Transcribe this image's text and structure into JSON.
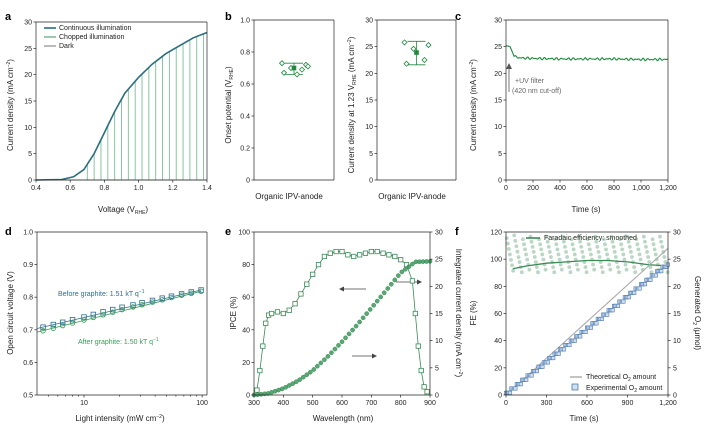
{
  "panels": {
    "a": {
      "label": "a",
      "xlabel": "Voltage (V",
      "xlabel_sub": "RHE",
      "xlabel_end": ")",
      "ylabel": "Current density (mA cm",
      "ylabel_sup": "−2",
      "ylabel_end": ")",
      "legend": [
        "Continuous illumination",
        "Chopped illumination",
        "Dark"
      ],
      "colors": {
        "continuous": "#2b6f7e",
        "chopped": "#7bbf97",
        "dark": "#aaaaaa"
      }
    },
    "b": {
      "label": "b",
      "left_ylabel": "Onset potential (V",
      "left_ylabel_sub": "RHE",
      "left_ylabel_end": ")",
      "right_ylabel": "Current density at 1.23 V",
      "right_ylabel_sub": "RHE",
      "right_ylabel_mid": " (mA cm",
      "right_ylabel_sup": "−2",
      "right_ylabel_end": ")",
      "left_category": "Organic IPV-anode",
      "right_category": "Organic IPV-anode",
      "color": "#1f8a3c"
    },
    "c": {
      "label": "c",
      "xlabel": "Time (s)",
      "ylabel": "Current density (mA cm",
      "ylabel_sup": "−2",
      "ylabel_end": ")",
      "annotation_line1": "+UV filter",
      "annotation_line2": "(420 nm cut-off)",
      "color": "#1f8a3c"
    },
    "d": {
      "label": "d",
      "xlabel": "Light intensity (mW cm",
      "xlabel_sup": "−2",
      "xlabel_end": ")",
      "ylabel": "Open circuit voltage (V)",
      "before_label": "Before graphite: 1.51 kT q",
      "before_sup": "−1",
      "after_label": "After graphite: 1.50 kT q",
      "after_sup": "−1",
      "colors": {
        "before": "#2f6f8f",
        "after": "#3a9a5a"
      }
    },
    "e": {
      "label": "e",
      "xlabel": "Wavelength (nm)",
      "ylabel": "IPCE (%)",
      "right_ylabel": "Integrated current density (mA cm",
      "right_ylabel_sup": "−2",
      "right_ylabel_end": ")",
      "colors": {
        "ipce": "#3a8a55",
        "integrated": "#3a9a5a"
      }
    },
    "f": {
      "label": "f",
      "xlabel": "Time (s)",
      "ylabel": "FE (%)",
      "right_ylabel": "Generated O",
      "right_ylabel_sub": "2",
      "right_ylabel_end": " (μmol)",
      "legend_fe": "Faradaic efficiency: smoothed",
      "legend_theo": "Theoretical O",
      "legend_theo_sub": "2",
      "legend_theo_end": " amount",
      "legend_exp": "Experimental O",
      "legend_exp_sub": "2",
      "legend_exp_end": " amount",
      "colors": {
        "fe": "#3a8a55",
        "theo": "#aaaaaa",
        "exp": "#4f7bb0"
      }
    }
  },
  "chart_data": [
    {
      "panel": "a",
      "type": "line",
      "xlim": [
        0.4,
        1.4
      ],
      "ylim": [
        0,
        30
      ],
      "xticks": [
        0.4,
        0.6,
        0.8,
        1.0,
        1.2,
        1.4
      ],
      "xtick_labels": [
        "0.4",
        "0.6",
        "0.8",
        "1.0",
        "1.2",
        "1.4"
      ],
      "yticks": [
        0,
        5,
        10,
        15,
        20,
        25,
        30
      ],
      "series": [
        {
          "name": "Continuous illumination",
          "x": [
            0.4,
            0.55,
            0.62,
            0.68,
            0.74,
            0.8,
            0.86,
            0.92,
            1.0,
            1.08,
            1.16,
            1.24,
            1.32,
            1.4
          ],
          "y": [
            0,
            0.1,
            0.6,
            2,
            5,
            9,
            13,
            16.5,
            19.5,
            22,
            24,
            25.5,
            27,
            28
          ]
        },
        {
          "name": "Chopped illumination",
          "chop_start": 0.7,
          "chop_step": 0.04
        },
        {
          "name": "Dark",
          "x": [
            0.4,
            1.4
          ],
          "y": [
            0,
            0
          ]
        }
      ]
    },
    {
      "panel": "b-left",
      "type": "scatter",
      "ylim": [
        0,
        1.0
      ],
      "yticks": [
        0,
        0.2,
        0.4,
        0.6,
        0.8,
        1.0
      ],
      "ytick_labels": [
        "0",
        "0.2",
        "0.4",
        "0.6",
        "0.8",
        "1.0"
      ],
      "points": [
        0.73,
        0.72,
        0.7,
        0.69,
        0.67,
        0.66,
        0.71
      ],
      "mean": 0.7,
      "err_lo": 0.66,
      "err_hi": 0.73
    },
    {
      "panel": "b-right",
      "type": "scatter",
      "ylim": [
        0,
        30
      ],
      "yticks": [
        0,
        5,
        10,
        15,
        20,
        25,
        30
      ],
      "points": [
        25.8,
        25.3,
        24.6,
        22.5,
        21.8
      ],
      "mean": 23.9,
      "err_lo": 21.6,
      "err_hi": 26.0
    },
    {
      "panel": "c",
      "type": "line",
      "xlim": [
        0,
        1200
      ],
      "ylim": [
        0,
        30
      ],
      "xticks": [
        0,
        200,
        400,
        600,
        800,
        1000,
        1200
      ],
      "xtick_labels": [
        "0",
        "200",
        "400",
        "600",
        "800",
        "1,000",
        "1,200"
      ],
      "yticks": [
        0,
        5,
        10,
        15,
        20,
        25,
        30
      ],
      "x": [
        0,
        30,
        60,
        100,
        200,
        400,
        600,
        800,
        1000,
        1200
      ],
      "y": [
        25.2,
        25.0,
        23.2,
        22.9,
        22.8,
        22.7,
        22.7,
        22.7,
        22.6,
        22.6
      ]
    },
    {
      "panel": "d",
      "type": "scatter",
      "xscale": "log",
      "xlim": [
        4,
        110
      ],
      "ylim": [
        0.5,
        1.0
      ],
      "xticks": [
        10,
        100
      ],
      "xtick_labels": [
        "10",
        "100"
      ],
      "yticks": [
        0.5,
        0.6,
        0.7,
        0.8,
        0.9,
        1.0
      ],
      "ytick_labels": [
        "0.5",
        "0.6",
        "0.7",
        "0.8",
        "0.9",
        "1.0"
      ],
      "series": [
        {
          "name": "Before graphite",
          "x": [
            4.5,
            5.5,
            6.6,
            8,
            10,
            12,
            14.5,
            17.5,
            21,
            26,
            31,
            38,
            46,
            55,
            67,
            81,
            98
          ],
          "y": [
            0.708,
            0.716,
            0.723,
            0.731,
            0.739,
            0.747,
            0.755,
            0.762,
            0.769,
            0.776,
            0.783,
            0.79,
            0.797,
            0.803,
            0.81,
            0.816,
            0.822
          ]
        },
        {
          "name": "After graphite",
          "x": [
            4.5,
            5.5,
            6.6,
            8,
            10,
            12,
            14.5,
            17.5,
            21,
            26,
            31,
            38,
            46,
            55,
            67,
            81,
            98
          ],
          "y": [
            0.697,
            0.705,
            0.713,
            0.721,
            0.73,
            0.738,
            0.746,
            0.754,
            0.762,
            0.77,
            0.777,
            0.785,
            0.792,
            0.799,
            0.806,
            0.812,
            0.818
          ]
        }
      ]
    },
    {
      "panel": "e",
      "type": "line",
      "xlim": [
        300,
        900
      ],
      "ylim": [
        0,
        100
      ],
      "y2lim": [
        0,
        30
      ],
      "xticks": [
        300,
        400,
        500,
        600,
        700,
        800,
        900
      ],
      "yticks": [
        0,
        20,
        40,
        60,
        80,
        100
      ],
      "y2ticks": [
        0,
        5,
        10,
        15,
        20,
        25,
        30
      ],
      "ipce_x": [
        310,
        320,
        330,
        340,
        350,
        360,
        380,
        400,
        420,
        440,
        460,
        480,
        500,
        520,
        540,
        560,
        580,
        600,
        620,
        640,
        660,
        680,
        700,
        720,
        740,
        760,
        780,
        800,
        820,
        840,
        850,
        860,
        870,
        880,
        890
      ],
      "ipce_y": [
        3,
        15,
        30,
        44,
        49,
        50,
        51,
        50,
        52,
        56,
        62,
        68,
        74,
        80,
        85,
        87,
        88,
        88,
        86,
        85,
        86,
        87,
        88,
        88,
        87,
        86,
        85,
        83,
        80,
        70,
        50,
        30,
        15,
        5,
        2
      ],
      "integrated_x": [
        300,
        350,
        400,
        450,
        500,
        550,
        600,
        650,
        700,
        750,
        800,
        850,
        900
      ],
      "integrated_y": [
        0,
        0.3,
        1.2,
        2.6,
        4.5,
        7,
        9.8,
        12.8,
        16,
        19.2,
        22.5,
        24.5,
        24.6
      ]
    },
    {
      "panel": "f",
      "type": "line",
      "xlim": [
        0,
        1200
      ],
      "ylim": [
        0,
        120
      ],
      "y2lim": [
        0,
        30
      ],
      "xticks": [
        0,
        300,
        600,
        900,
        1200
      ],
      "xtick_labels": [
        "0",
        "300",
        "600",
        "900",
        "1,200"
      ],
      "yticks": [
        0,
        20,
        40,
        60,
        80,
        100,
        120
      ],
      "y2ticks": [
        0,
        5,
        10,
        15,
        20,
        25,
        30
      ],
      "fe_smoothed_x": [
        50,
        150,
        300,
        450,
        600,
        750,
        900,
        1050,
        1200
      ],
      "fe_smoothed_y": [
        93,
        95,
        97,
        98,
        99,
        99,
        98,
        96,
        95
      ],
      "theoretical_x": [
        0,
        1200
      ],
      "theoretical_y": [
        0,
        27
      ],
      "experimental_x": [
        0,
        1200
      ],
      "experimental_y": [
        0,
        24
      ]
    }
  ]
}
